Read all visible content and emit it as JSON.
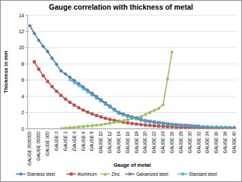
{
  "chart_data": {
    "type": "line",
    "title": "Gauge correlation with thickness of metal",
    "x_label": "Gauge of metal",
    "y_label": "Thickness in mm",
    "categories": [
      "GAUGE 0000000",
      null,
      "GAUGE 00000",
      null,
      "GAUGE 000",
      null,
      "GAUGE 0",
      null,
      "GAUGE 2",
      null,
      "GAUGE 4",
      null,
      "GAUGE 6",
      null,
      "GAUGE 8",
      null,
      "GAUGE 10",
      null,
      "GAUGE 12",
      null,
      "GAUGE 14",
      null,
      "GAUGE 16",
      null,
      "GAUGE 18",
      null,
      "GAUGE 20",
      null,
      "GAUGE 22",
      null,
      "GAUGE 24",
      null,
      "GAUGE 26",
      null,
      "GAUGE 28",
      null,
      "GAUGE 30",
      null,
      "GAUGE 32",
      null,
      "GAUGE 34",
      null,
      "GAUGE 36",
      null,
      "GAUGE 38",
      null,
      "GAUGE 40"
    ],
    "series": [
      {
        "name": "Stainless steel",
        "color": "#4a7ebb",
        "marker": "diamond",
        "values": [
          12.7,
          11.76,
          10.9,
          10.16,
          9.52,
          8.7,
          7.94,
          7.14,
          6.75,
          6.35,
          5.95,
          5.56,
          5.16,
          4.76,
          4.37,
          3.97,
          3.57,
          3.18,
          2.78,
          2.38,
          1.98,
          1.79,
          1.59,
          1.43,
          1.27,
          1.11,
          0.95,
          0.87,
          0.79,
          0.71,
          0.64,
          0.56,
          0.48,
          0.44,
          0.4,
          0.36,
          0.32,
          0.28,
          0.26,
          0.24,
          0.22,
          0.2,
          0.18,
          0.16,
          0.15,
          0.14,
          0.13
        ]
      },
      {
        "name": "Aluminum",
        "color": "#be4b48",
        "marker": "square",
        "values": [
          null,
          8.25,
          7.35,
          6.54,
          5.83,
          5.19,
          4.62,
          4.11,
          3.66,
          3.26,
          2.91,
          2.59,
          2.3,
          2.05,
          1.83,
          1.63,
          1.45,
          1.29,
          1.15,
          1.02,
          0.91,
          0.81,
          0.72,
          0.64,
          0.57,
          0.51,
          0.45,
          0.4,
          0.36,
          0.32,
          0.29,
          0.25,
          0.23,
          0.2,
          0.18,
          0.16,
          0.14,
          0.13,
          0.11,
          0.1,
          0.09,
          0.08,
          0.07,
          0.06,
          0.06,
          0.05,
          0.05
        ]
      },
      {
        "name": "Zinc",
        "color": "#98b954",
        "marker": "triangle",
        "values": [
          null,
          null,
          null,
          null,
          null,
          null,
          null,
          0.05,
          0.1,
          0.15,
          0.2,
          0.25,
          0.3,
          0.36,
          0.41,
          0.46,
          0.51,
          0.61,
          0.71,
          0.81,
          0.91,
          1.02,
          1.14,
          1.27,
          1.4,
          1.52,
          1.78,
          2.03,
          2.29,
          2.54,
          3.0,
          6.2,
          9.5,
          null,
          null,
          null,
          null,
          null,
          null,
          null,
          null,
          null,
          null,
          null,
          null,
          null,
          null
        ]
      },
      {
        "name": "Galvanized steel",
        "color": "#7d60a0",
        "marker": "x",
        "values": [
          null,
          null,
          null,
          null,
          null,
          null,
          null,
          null,
          null,
          null,
          null,
          null,
          null,
          null,
          4.27,
          3.89,
          3.51,
          3.12,
          2.75,
          2.37,
          1.99,
          1.8,
          1.61,
          1.46,
          1.31,
          1.16,
          1.0,
          0.93,
          0.85,
          0.78,
          0.7,
          0.63,
          0.55,
          0.51,
          0.47,
          0.44,
          0.4,
          0.36,
          0.34,
          null,
          null,
          null,
          null,
          null,
          null,
          null,
          null
        ]
      },
      {
        "name": "Standard steel",
        "color": "#46aac5",
        "marker": "star",
        "values": [
          null,
          null,
          null,
          null,
          null,
          null,
          null,
          null,
          null,
          6.07,
          5.7,
          5.31,
          4.94,
          4.55,
          4.18,
          3.8,
          3.42,
          3.04,
          2.66,
          2.28,
          1.9,
          1.71,
          1.52,
          1.37,
          1.21,
          1.06,
          0.91,
          0.84,
          0.76,
          0.68,
          0.61,
          0.53,
          0.45,
          0.42,
          0.38,
          0.34,
          0.3,
          0.27,
          0.25,
          0.23,
          0.21,
          0.19,
          0.17,
          0.16,
          0.15,
          0.13,
          0.12
        ]
      }
    ],
    "ylim": [
      0,
      14
    ],
    "yticks": [
      0,
      2,
      4,
      6,
      8,
      10,
      12,
      14
    ],
    "grid": true,
    "legend": "bottom"
  }
}
